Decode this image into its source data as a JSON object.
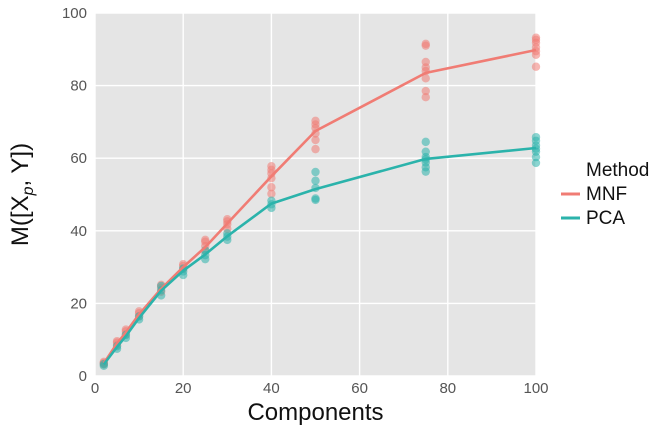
{
  "chart_data": {
    "type": "line",
    "xlabel": "Components",
    "ylabel_parts": [
      "M([X",
      "p",
      ", Y])"
    ],
    "xlim": [
      0,
      100
    ],
    "ylim": [
      0,
      100
    ],
    "x_ticks": [
      0,
      20,
      40,
      60,
      80,
      100
    ],
    "y_ticks": [
      0,
      20,
      40,
      60,
      80,
      100
    ],
    "grid": true,
    "legend_placement": "right",
    "legend_title": "Method",
    "series": [
      {
        "name": "MNF",
        "color": "#f07c74",
        "x": [
          2,
          5,
          7,
          10,
          15,
          20,
          25,
          30,
          40,
          50,
          75,
          100
        ],
        "mean": [
          3.5,
          9.0,
          12.0,
          17.0,
          24.0,
          30.0,
          35.5,
          42.0,
          55.0,
          67.5,
          83.5,
          89.8
        ],
        "points": [
          [
            2,
            [
              3.2,
              3.6,
              3.9
            ]
          ],
          [
            5,
            [
              8.5,
              9.2,
              9.6
            ]
          ],
          [
            7,
            [
              11.5,
              12.3,
              12.8
            ]
          ],
          [
            10,
            [
              16.5,
              17.3,
              17.8
            ]
          ],
          [
            15,
            [
              23.2,
              24.3,
              25.1
            ]
          ],
          [
            20,
            [
              29.5,
              30.3,
              30.8
            ]
          ],
          [
            25,
            [
              34.5,
              35.8,
              37.0,
              37.5
            ]
          ],
          [
            30,
            [
              40.5,
              41.8,
              42.6,
              43.2
            ]
          ],
          [
            40,
            [
              50.2,
              52.0,
              54.5,
              55.8,
              56.8,
              57.8
            ]
          ],
          [
            50,
            [
              62.5,
              65.0,
              66.8,
              68.3,
              69.3,
              70.3
            ]
          ],
          [
            75,
            [
              76.8,
              78.5,
              82.0,
              84.0,
              85.0,
              86.5,
              91.0,
              91.5
            ]
          ],
          [
            100,
            [
              85.2,
              88.5,
              89.5,
              90.5,
              91.8,
              92.6,
              93.2
            ]
          ]
        ]
      },
      {
        "name": "PCA",
        "color": "#2bb3ab",
        "x": [
          2,
          5,
          7,
          10,
          15,
          20,
          25,
          30,
          40,
          50,
          75,
          100
        ],
        "mean": [
          3.2,
          8.0,
          11.0,
          16.0,
          23.5,
          29.0,
          33.5,
          38.5,
          47.5,
          51.5,
          59.8,
          62.8
        ],
        "points": [
          [
            2,
            [
              2.8,
              3.3
            ]
          ],
          [
            5,
            [
              7.5,
              8.2
            ]
          ],
          [
            7,
            [
              10.5,
              11.3
            ]
          ],
          [
            10,
            [
              15.6,
              16.4
            ]
          ],
          [
            15,
            [
              22.2,
              23.6,
              24.8
            ]
          ],
          [
            20,
            [
              27.8,
              28.8,
              29.6
            ]
          ],
          [
            25,
            [
              32.2,
              33.3,
              34.6
            ]
          ],
          [
            30,
            [
              37.5,
              38.4,
              39.3
            ]
          ],
          [
            40,
            [
              46.3,
              47.3,
              48.3
            ]
          ],
          [
            50,
            [
              48.5,
              48.9,
              51.8,
              53.8,
              56.2
            ]
          ],
          [
            75,
            [
              56.3,
              57.5,
              58.8,
              59.7,
              60.3,
              61.8,
              64.5
            ]
          ],
          [
            100,
            [
              58.7,
              60.3,
              61.8,
              62.6,
              63.5,
              64.8,
              65.8
            ]
          ]
        ]
      }
    ]
  }
}
